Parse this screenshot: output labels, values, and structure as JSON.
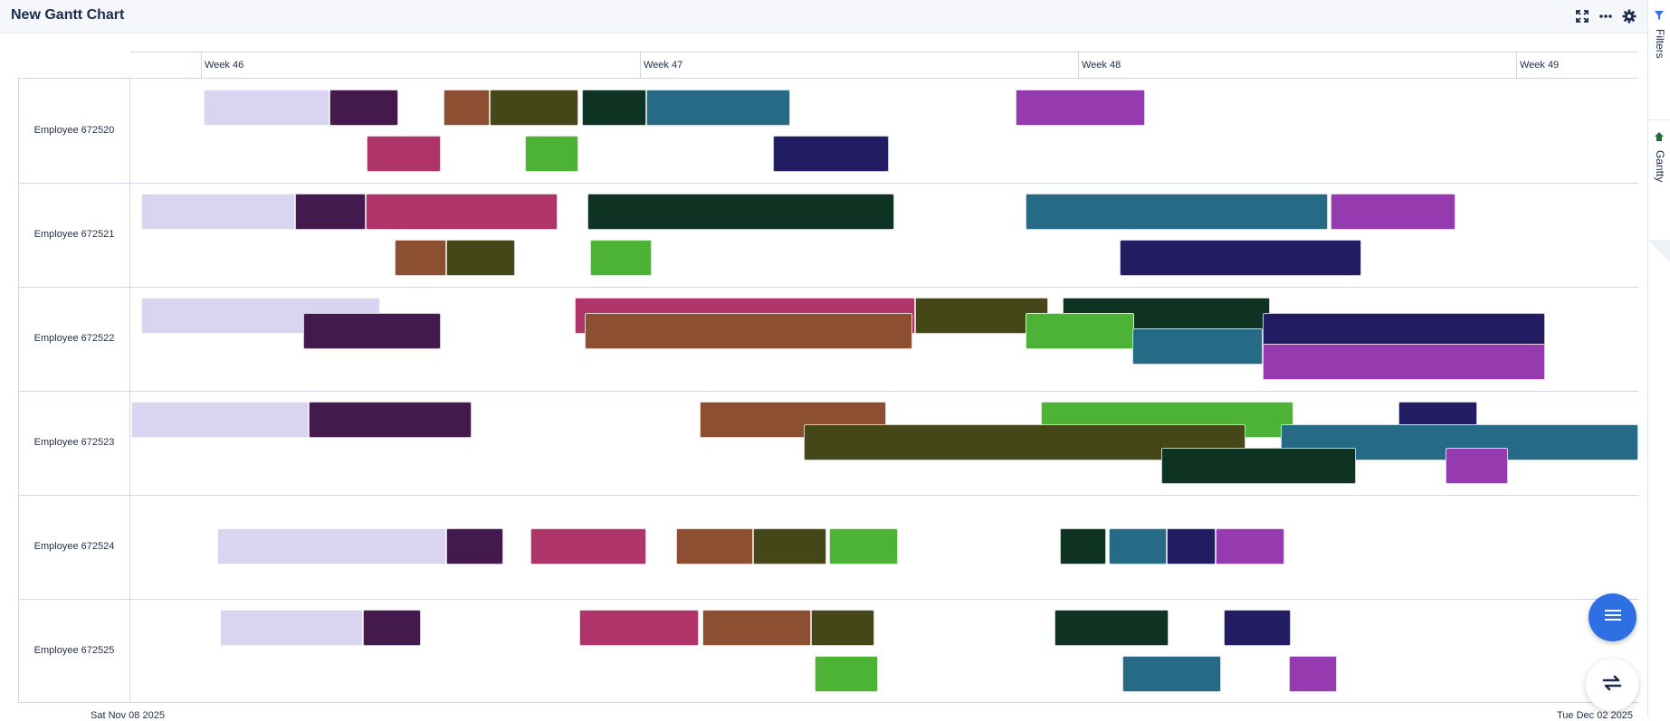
{
  "header": {
    "title": "New Gantt Chart"
  },
  "toolbar": {
    "fullscreen_icon": "fullscreen-icon",
    "more_icon": "more-icon",
    "settings_icon": "gear-icon"
  },
  "side_rail": {
    "filters_label": "Filters",
    "filters_icon": "filter-icon",
    "gantty_label": "Gantty",
    "gantty_icon": "home-icon"
  },
  "timeline": {
    "weeks": [
      "Week 46",
      "Week 47",
      "Week 48",
      "Week 49"
    ],
    "start_date": "Sat Nov 08 2025",
    "end_date": "Tue Dec 02 2025"
  },
  "rows": [
    {
      "label": "Employee 672520"
    },
    {
      "label": "Employee 672521"
    },
    {
      "label": "Employee 672522"
    },
    {
      "label": "Employee 672523"
    },
    {
      "label": "Employee 672524"
    },
    {
      "label": "Employee 672525"
    }
  ],
  "colors": {
    "c1": "#d9d5f1",
    "c2": "#44194d",
    "c3": "#af3469",
    "c4": "#8d4f31",
    "c5": "#454719",
    "c6": "#4db336",
    "c7": "#0e3323",
    "c8": "#276a86",
    "c9": "#221d63",
    "c10": "#963aaf",
    "accent": "#2f6fe4"
  },
  "fab": {
    "menu_icon": "menu-icon",
    "swap_icon": "swap-icon"
  }
}
